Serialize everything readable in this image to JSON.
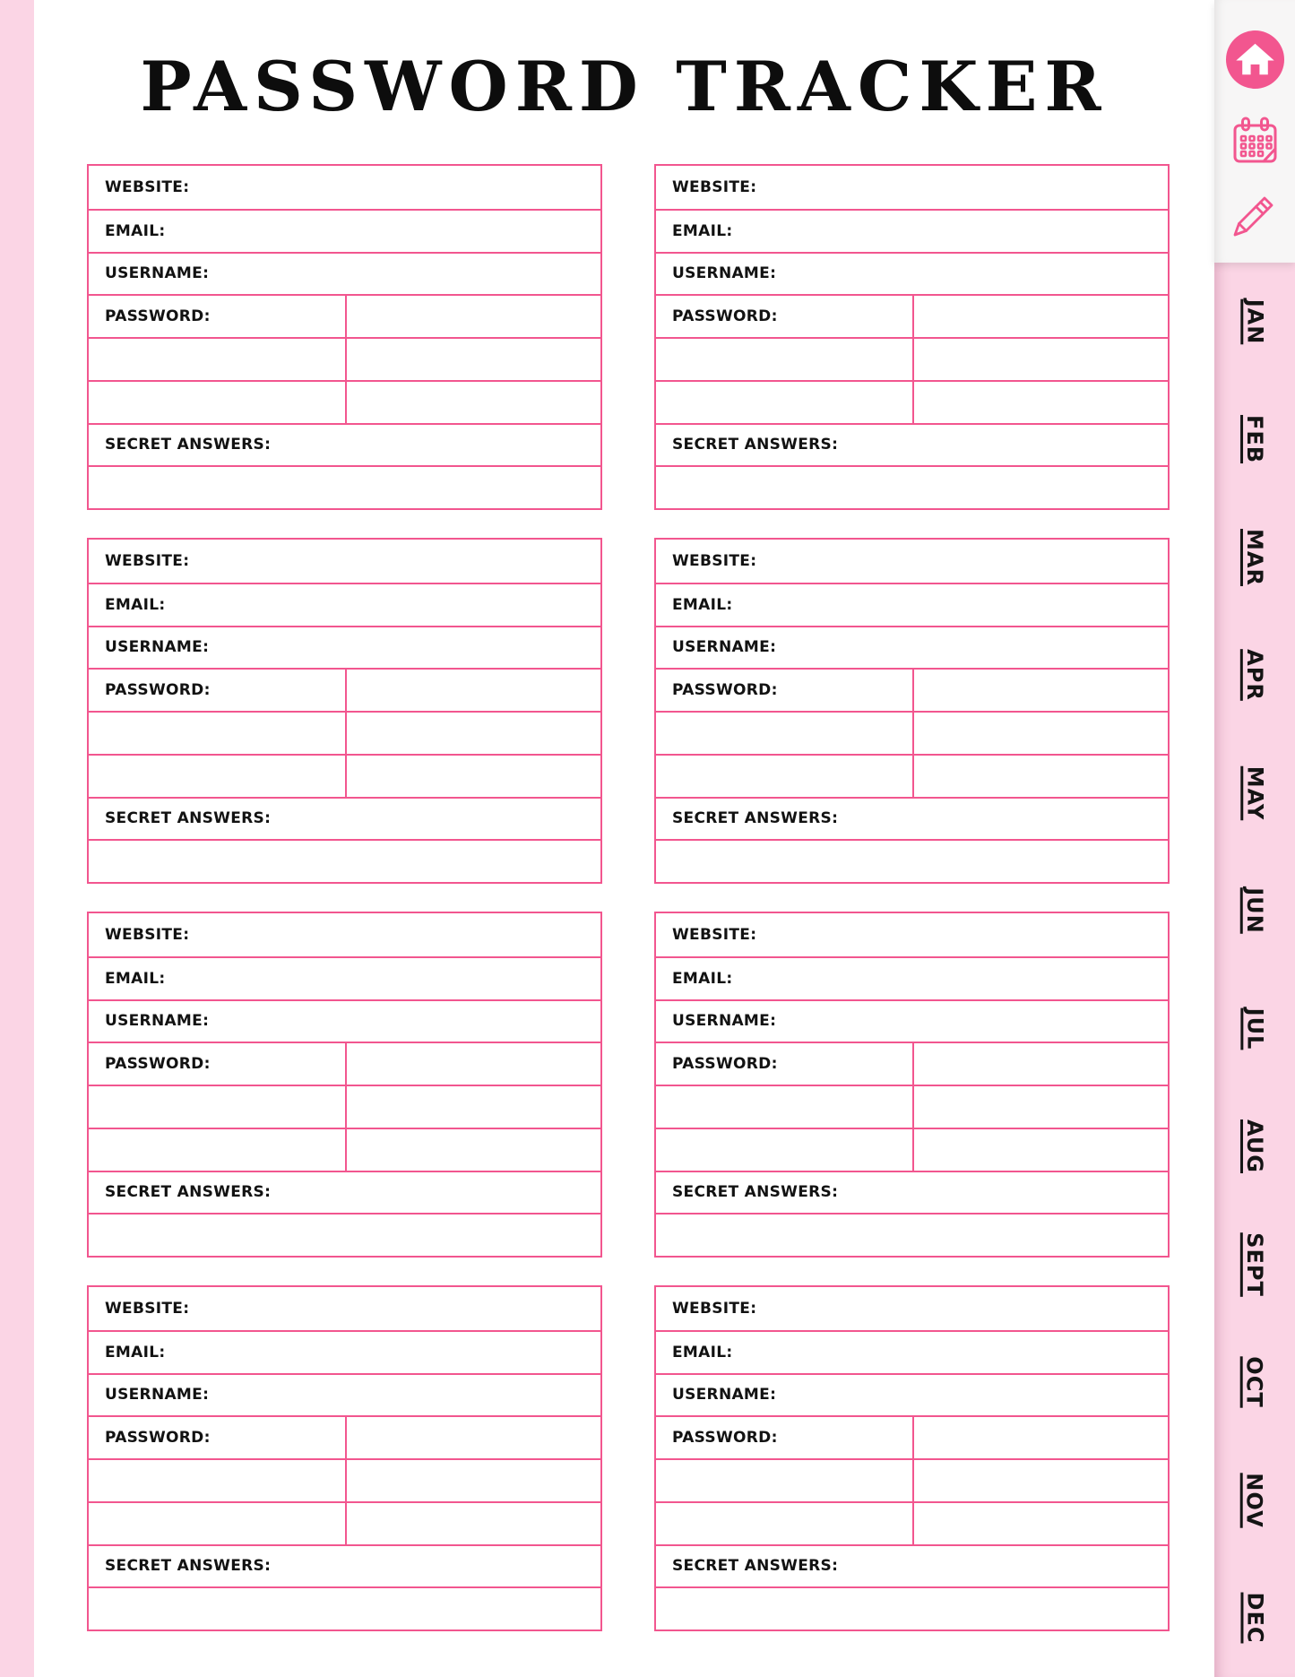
{
  "page": {
    "title": "PASSWORD TRACKER"
  },
  "colors": {
    "accent_pink": "#F2568F",
    "edge_strip_pink": "#FBD5E5",
    "sidebar_tab_pink": "#FBD5E5",
    "icon_panel_bg": "#F7F6F6",
    "text_black": "#121212",
    "card_background": "#FFFFFF"
  },
  "card_fields": {
    "website": "WEBSITE:",
    "email": "EMAIL:",
    "username": "USERNAME:",
    "password": "PASSWORD:",
    "secret_answers": "SECRET ANSWERS:"
  },
  "cards_count": 8,
  "toolbar": {
    "icons": [
      "home-icon",
      "calendar-icon",
      "pencil-icon"
    ]
  },
  "month_tabs": [
    "JAN",
    "FEB",
    "MAR",
    "APR",
    "MAY",
    "JUN",
    "JUL",
    "AUG",
    "SEPT",
    "OCT",
    "NOV",
    "DEC"
  ]
}
